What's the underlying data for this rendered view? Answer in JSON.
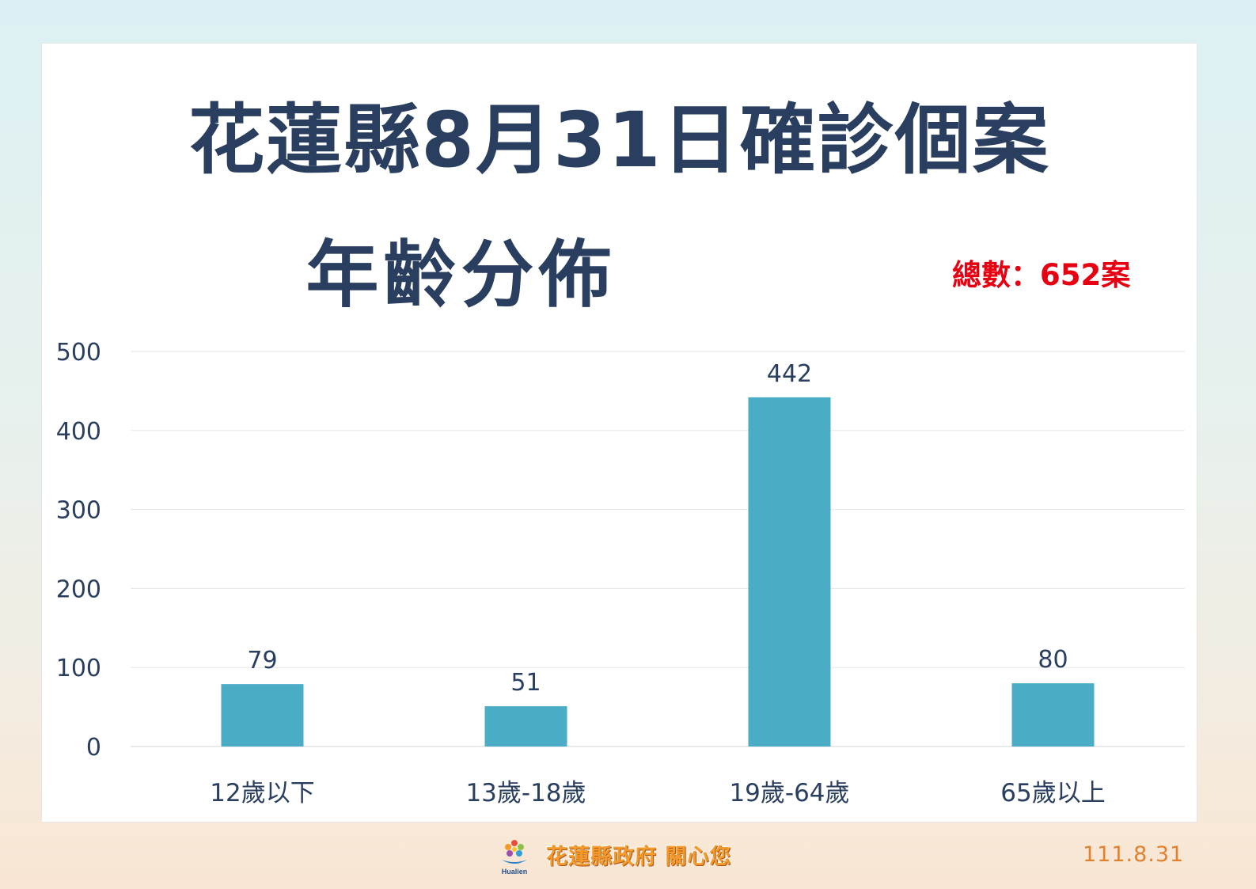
{
  "title": {
    "line1": "花蓮縣8月31日確診個案",
    "line2": "年齡分佈"
  },
  "total_label": "總數：652案",
  "footer": {
    "logo_caption": "Hualien",
    "slogan": "花蓮縣政府 關心您",
    "date": "111.8.31"
  },
  "colors": {
    "bar": "#4bacc6",
    "title": "#2a3f5f",
    "total": "#e60012",
    "slogan": "#f39a2b"
  },
  "chart_data": {
    "type": "bar",
    "title": "花蓮縣8月31日確診個案 年齡分佈",
    "categories": [
      "12歲以下",
      "13歲-18歲",
      "19歲-64歲",
      "65歲以上"
    ],
    "values": [
      79,
      51,
      442,
      80
    ],
    "data_labels": [
      "79",
      "51",
      "442",
      "80"
    ],
    "ylim": [
      0,
      500
    ],
    "yticks": [
      0,
      100,
      200,
      300,
      400,
      500
    ],
    "grid": true,
    "xlabel": "",
    "ylabel": ""
  }
}
